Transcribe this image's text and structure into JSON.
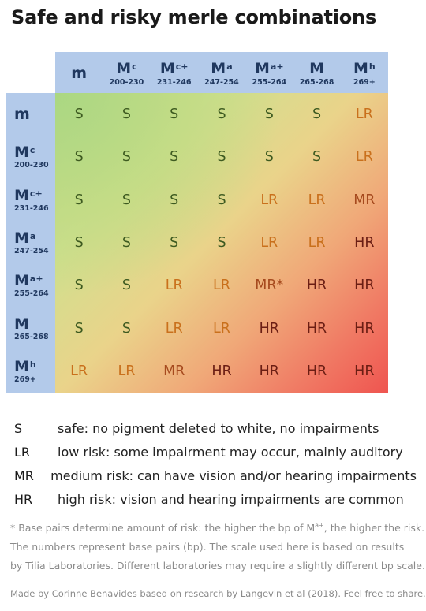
{
  "title": "Safe and risky merle combinations",
  "colors": {
    "header_bg": "#b3caea",
    "header_text": "#20385f",
    "S": "#3d5a20",
    "LR": "#c9701c",
    "MR": "#a64a1e",
    "HR": "#6b1e14",
    "heat_low": "#b4d98a",
    "heat_high": "#ef5550"
  },
  "chart_data": {
    "type": "heatmap",
    "title": "Safe and risky merle combinations",
    "columns": [
      {
        "allele": "m",
        "sup": "",
        "range": ""
      },
      {
        "allele": "M",
        "sup": "c",
        "range": "200-230"
      },
      {
        "allele": "M",
        "sup": "c+",
        "range": "231-246"
      },
      {
        "allele": "M",
        "sup": "a",
        "range": "247-254"
      },
      {
        "allele": "M",
        "sup": "a+",
        "range": "255-264"
      },
      {
        "allele": "M",
        "sup": "",
        "range": "265-268"
      },
      {
        "allele": "M",
        "sup": "h",
        "range": "269+"
      }
    ],
    "rows": [
      {
        "allele": "m",
        "sup": "",
        "range": ""
      },
      {
        "allele": "M",
        "sup": "c",
        "range": "200-230"
      },
      {
        "allele": "M",
        "sup": "c+",
        "range": "231-246"
      },
      {
        "allele": "M",
        "sup": "a",
        "range": "247-254"
      },
      {
        "allele": "M",
        "sup": "a+",
        "range": "255-264"
      },
      {
        "allele": "M",
        "sup": "",
        "range": "265-268"
      },
      {
        "allele": "M",
        "sup": "h",
        "range": "269+"
      }
    ],
    "values": [
      [
        "S",
        "S",
        "S",
        "S",
        "S",
        "S",
        "LR"
      ],
      [
        "S",
        "S",
        "S",
        "S",
        "S",
        "S",
        "LR"
      ],
      [
        "S",
        "S",
        "S",
        "S",
        "LR",
        "LR",
        "MR"
      ],
      [
        "S",
        "S",
        "S",
        "S",
        "LR",
        "LR",
        "HR"
      ],
      [
        "S",
        "S",
        "LR",
        "LR",
        "MR*",
        "HR",
        "HR"
      ],
      [
        "S",
        "S",
        "LR",
        "LR",
        "HR",
        "HR",
        "HR"
      ],
      [
        "LR",
        "LR",
        "MR",
        "HR",
        "HR",
        "HR",
        "HR"
      ]
    ]
  },
  "legend": [
    {
      "code": "S",
      "text": "safe: no pigment deleted to white, no impairments"
    },
    {
      "code": "LR",
      "text": "low risk: some impairment may occur, mainly auditory"
    },
    {
      "code": "MR",
      "text": "medium risk: can have vision and/or hearing impairments"
    },
    {
      "code": "HR",
      "text": "high risk: vision and hearing impairments are common"
    }
  ],
  "notes": {
    "line1_pre": "* Base pairs determine amount of risk: the higher the bp of M",
    "line1_sup": "a+",
    "line1_post": ", the higher the risk.",
    "line2": "The numbers represent base pairs (bp). The scale used here is based on results",
    "line3": "by Tilia Laboratories. Different laboratories may require a slightly different bp scale."
  },
  "credit": "Made by Corinne Benavides based on research by Langevin et al (2018). Feel free to share."
}
